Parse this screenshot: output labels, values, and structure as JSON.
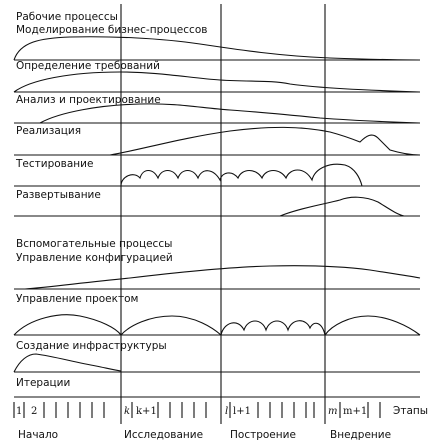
{
  "workflows_heading": "Рабочие процессы",
  "support_heading": "Вспомогательные процессы",
  "rows": [
    {
      "id": "business-modeling",
      "label": "Моделирование бизнес-процессов"
    },
    {
      "id": "requirements",
      "label": "Определение требований"
    },
    {
      "id": "analysis-design",
      "label": "Анализ и проектирование"
    },
    {
      "id": "implementation",
      "label": "Реализация"
    },
    {
      "id": "testing",
      "label": "Тестирование"
    },
    {
      "id": "deployment",
      "label": "Развертывание"
    },
    {
      "id": "config-management",
      "label": "Управление конфигурацией"
    },
    {
      "id": "project-management",
      "label": "Управление проектом"
    },
    {
      "id": "environment",
      "label": "Создание инфраструктуры"
    },
    {
      "id": "iterations",
      "label": "Итерации"
    }
  ],
  "iteration_labels": {
    "first": "1",
    "second": "2",
    "k": "k",
    "k_plus_1": "k+1",
    "l": "l",
    "l_plus_1": "l+1",
    "m": "m",
    "m_plus_1": "m+1"
  },
  "axis_label": "Этапы",
  "phases": [
    "Начало",
    "Исследование",
    "Построение",
    "Внедрение"
  ]
}
